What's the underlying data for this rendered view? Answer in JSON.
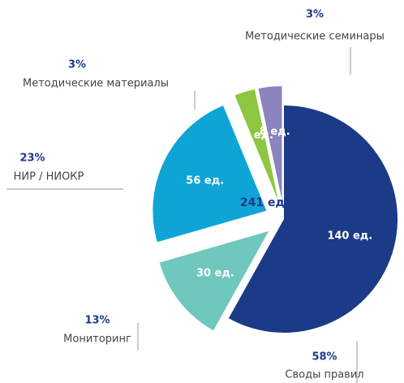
{
  "chart_data": {
    "type": "pie",
    "categories": [
      "Своды правил",
      "Мониторинг",
      "НИР / НИОКР",
      "Методические материалы",
      "Методические семинары"
    ],
    "values": [
      140,
      30,
      56,
      7,
      8
    ],
    "value_labels": [
      "140 ед.",
      "30 ед.",
      "56 ед.",
      "7 ед.",
      "8 ед."
    ],
    "percent_labels": [
      "58%",
      "13%",
      "23%",
      "3%",
      "3%"
    ],
    "colors": [
      "#1b3a87",
      "#6fc7bd",
      "#0ea5d6",
      "#8dc63f",
      "#8b84bf"
    ],
    "center_label": "241 ед."
  }
}
